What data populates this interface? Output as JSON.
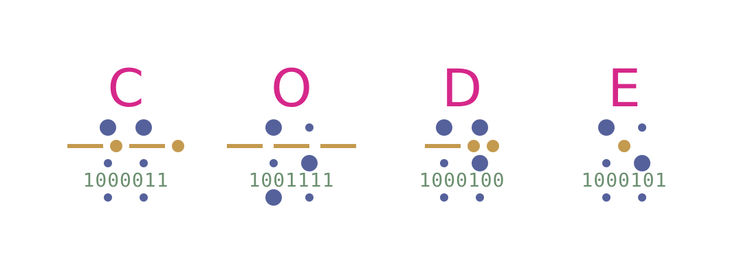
{
  "colors": {
    "letter": "#d6278a",
    "dot": "#55619b",
    "gold": "#c49a4f",
    "binary": "#6b8f6f",
    "background": "#ffffff"
  },
  "groups": [
    {
      "letter": "C",
      "binary": "1000011",
      "top": [
        "big",
        "big"
      ],
      "middle": [
        "dash",
        "dot",
        "dash",
        "dot"
      ],
      "upper": [
        "small",
        "small"
      ],
      "lower": [
        "small",
        "small"
      ]
    },
    {
      "letter": "O",
      "binary": "1001111",
      "top": [
        "big",
        "small"
      ],
      "middle": [
        "dash",
        "dash",
        "dash"
      ],
      "upper": [
        "small",
        "big"
      ],
      "lower": [
        "big",
        "small"
      ]
    },
    {
      "letter": "D",
      "binary": "1000100",
      "top": [
        "big",
        "big"
      ],
      "middle": [
        "dash",
        "dot",
        "dot"
      ],
      "upper": [
        "small",
        "big"
      ],
      "lower": [
        "small",
        "small"
      ]
    },
    {
      "letter": "E",
      "binary": "1000101",
      "top": [
        "big",
        "small"
      ],
      "middle": [
        "dot"
      ],
      "upper": [
        "small",
        "big"
      ],
      "lower": [
        "small",
        "small"
      ]
    }
  ]
}
